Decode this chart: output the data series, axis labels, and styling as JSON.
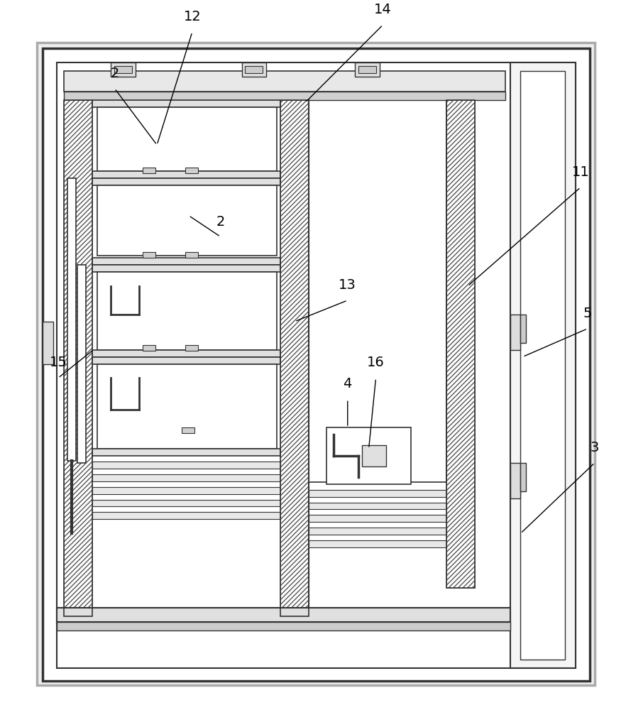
{
  "bg_color": "#ffffff",
  "line_color": "#333333",
  "light_gray": "#bbbbbb",
  "mid_gray": "#888888",
  "hatch_color": "#666666",
  "labels": {
    "2a": [
      220,
      55,
      270,
      165,
      "2"
    ],
    "2b": [
      250,
      330,
      290,
      395,
      "2"
    ],
    "3": [
      820,
      630,
      860,
      760,
      "3"
    ],
    "4": [
      480,
      600,
      550,
      700,
      "4"
    ],
    "5": [
      790,
      430,
      840,
      530,
      "5"
    ],
    "11": [
      790,
      200,
      840,
      380,
      "11"
    ],
    "12": [
      200,
      25,
      350,
      70,
      "12"
    ],
    "13": [
      440,
      390,
      530,
      500,
      "13"
    ],
    "14": [
      520,
      25,
      650,
      70,
      "14"
    ],
    "15": [
      65,
      490,
      150,
      590,
      "15"
    ],
    "16": [
      480,
      540,
      570,
      610,
      "16"
    ]
  },
  "fig_width": 8.82,
  "fig_height": 10.0,
  "dpi": 100
}
